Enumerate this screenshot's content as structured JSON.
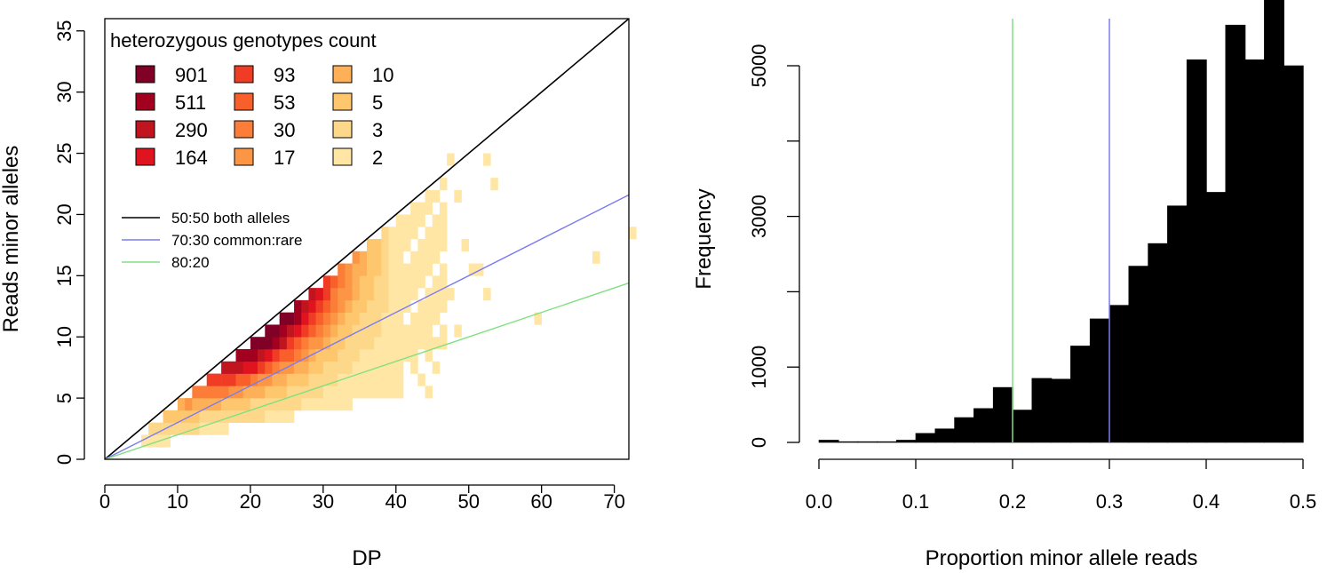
{
  "chart_data": [
    {
      "type": "heatmap",
      "xlabel": "DP",
      "ylabel": "Reads minor alleles",
      "xlim": [
        0,
        72
      ],
      "ylim": [
        0,
        36
      ],
      "xticks": [
        "0",
        "10",
        "20",
        "30",
        "40",
        "50",
        "60",
        "70"
      ],
      "yticks": [
        "0",
        "5",
        "10",
        "15",
        "20",
        "25",
        "30",
        "35"
      ],
      "legend": {
        "title": "heterozygous genotypes count",
        "placement": "top-left",
        "entries": [
          {
            "label": "901",
            "color": "#800026"
          },
          {
            "label": "511",
            "color": "#A1001F"
          },
          {
            "label": "290",
            "color": "#C0141F"
          },
          {
            "label": "164",
            "color": "#E0141F"
          },
          {
            "label": "93",
            "color": "#F13C25"
          },
          {
            "label": "53",
            "color": "#F85F2B"
          },
          {
            "label": "30",
            "color": "#FB7D37"
          },
          {
            "label": "17",
            "color": "#FC9644"
          },
          {
            "label": "10",
            "color": "#FDB057"
          },
          {
            "label": "5",
            "color": "#FEC76D"
          },
          {
            "label": "3",
            "color": "#FED88A"
          },
          {
            "label": "2",
            "color": "#FFE6A4"
          }
        ]
      },
      "lines_legend": [
        {
          "label": "50:50 both alleles",
          "color": "#000000",
          "slope": 0.5
        },
        {
          "label": "70:30 common:rare",
          "color": "#7B7BF0",
          "slope": 0.3
        },
        {
          "label": "80:20",
          "color": "#80E080",
          "slope": 0.2
        }
      ],
      "scattered_cells": [
        [
          47,
          24
        ],
        [
          48,
          21
        ],
        [
          52,
          24
        ],
        [
          53,
          22
        ],
        [
          51,
          15
        ],
        [
          52,
          13
        ],
        [
          59,
          11
        ],
        [
          67,
          16
        ],
        [
          72,
          18
        ],
        [
          49,
          17
        ],
        [
          50,
          15
        ],
        [
          47,
          13
        ],
        [
          46,
          12
        ],
        [
          45,
          11
        ],
        [
          44,
          9
        ],
        [
          45,
          7
        ],
        [
          43,
          6
        ],
        [
          48,
          10
        ],
        [
          44,
          5
        ],
        [
          42,
          7
        ]
      ]
    },
    {
      "type": "bar",
      "xlabel": "Proportion minor allele reads",
      "ylabel": "Frequency",
      "xlim": [
        0,
        0.5
      ],
      "ylim": [
        0,
        6500
      ],
      "xticks": [
        "0.0",
        "0.1",
        "0.2",
        "0.3",
        "0.4",
        "0.5"
      ],
      "yticks": [
        "0",
        "1000",
        "3000",
        "5000"
      ],
      "bin_width": 0.02,
      "bins_start": [
        0.0,
        0.02,
        0.04,
        0.06,
        0.08,
        0.1,
        0.12,
        0.14,
        0.16,
        0.18,
        0.2,
        0.22,
        0.24,
        0.26,
        0.28,
        0.3,
        0.32,
        0.34,
        0.36,
        0.38,
        0.4,
        0.42,
        0.44,
        0.46,
        0.48
      ],
      "values": [
        30,
        10,
        10,
        10,
        30,
        120,
        180,
        330,
        450,
        730,
        430,
        850,
        840,
        1280,
        1640,
        1820,
        2340,
        2640,
        3140,
        5080,
        3320,
        5540,
        5080,
        6550,
        5000
      ],
      "vlines": [
        {
          "x": 0.2,
          "color": "#80E080"
        },
        {
          "x": 0.3,
          "color": "#7B7BF0"
        }
      ]
    }
  ]
}
